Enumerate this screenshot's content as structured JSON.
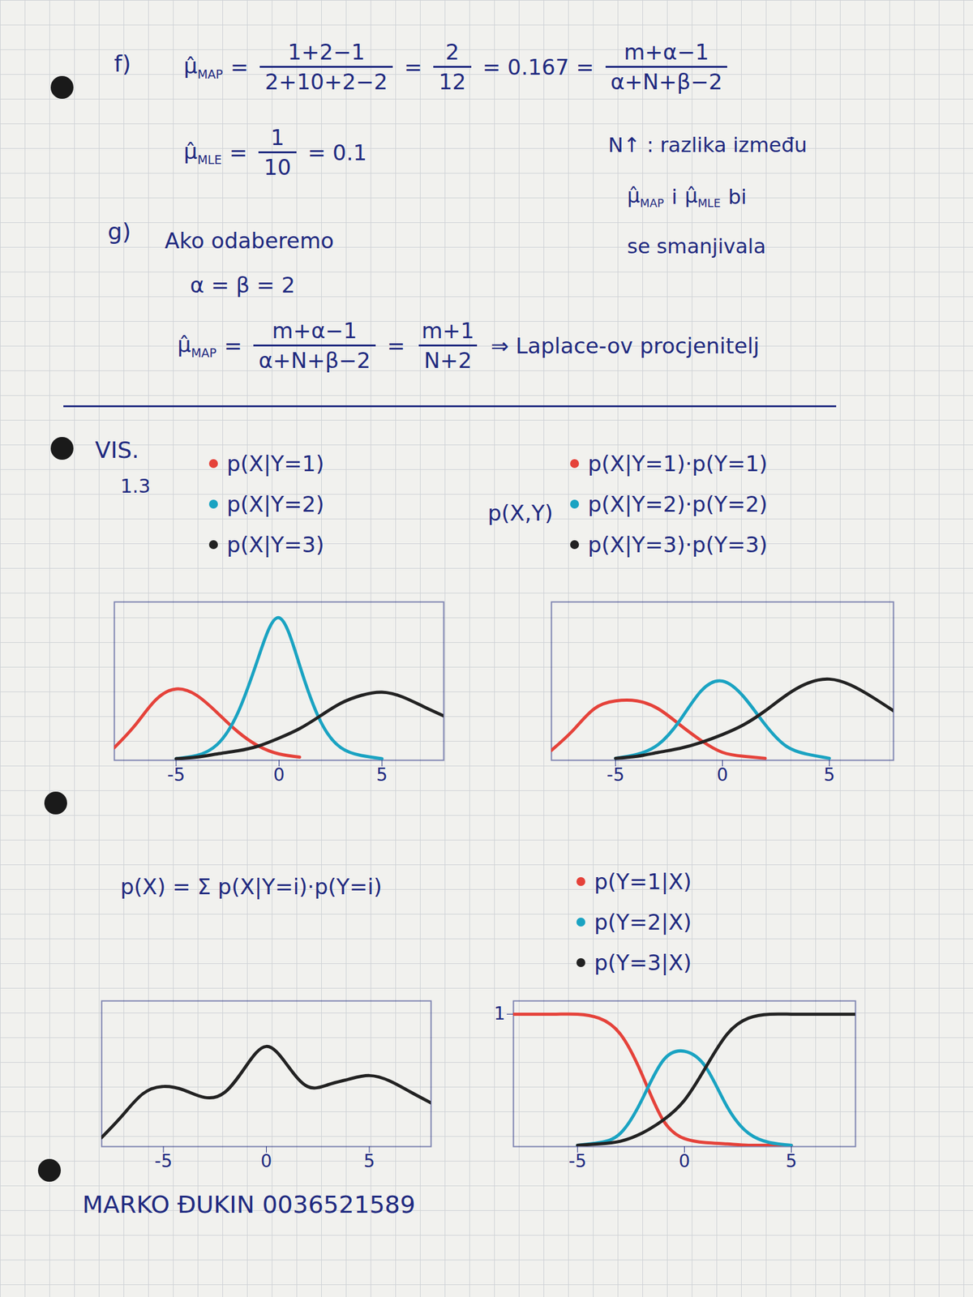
{
  "notes": {
    "f": {
      "label": "f)",
      "map": [
        {
          "sym": "μ̂",
          "sub": "MAP"
        },
        "=",
        {
          "num": "1+2−1",
          "den": "2+10+2−2"
        },
        "=",
        {
          "num": "2",
          "den": "12"
        },
        "= 0.167 =",
        {
          "num": "m+α−1",
          "den": "α+N+β−2"
        }
      ],
      "mle": [
        {
          "sym": "μ̂",
          "sub": "MLE"
        },
        "=",
        {
          "num": "1",
          "den": "10"
        },
        "= 0.1"
      ],
      "remark": [
        [
          "N↑ : razlika između"
        ],
        [
          {
            "sym": "μ̂",
            "sub": "MAP"
          },
          "i",
          {
            "sym": "μ̂",
            "sub": "MLE"
          },
          "bi"
        ],
        [
          "se smanjivala"
        ]
      ]
    },
    "g": {
      "label": "g)",
      "lines": [
        [
          "Ako odaberemo"
        ],
        [
          "α = β = 2"
        ],
        [
          {
            "sym": "μ̂",
            "sub": "MAP"
          },
          "=",
          {
            "num": "m+α−1",
            "den": "α+N+β−2"
          },
          "=",
          {
            "num": "m+1",
            "den": "N+2"
          },
          "⇒ Laplace-ov procjenitelj"
        ]
      ]
    }
  },
  "vis": {
    "heading": "VIS.",
    "section": "1.3"
  },
  "chart_data": [
    {
      "type": "line",
      "x": [
        -8,
        -7,
        -6,
        -5,
        -4,
        -3,
        -2,
        -1,
        0,
        1,
        2,
        3,
        4,
        5,
        6,
        7,
        8
      ],
      "xlim": [
        -8,
        8
      ],
      "xticks": [
        -5,
        0,
        5
      ],
      "ylim": [
        0,
        1
      ],
      "tick_labels": "x",
      "series": [
        {
          "name": "p(X|Y=1)",
          "color": "#e5423a",
          "values": [
            0.08,
            0.22,
            0.38,
            0.45,
            0.41,
            0.3,
            0.18,
            0.09,
            0.04,
            0.02,
            null,
            null,
            null,
            null,
            null,
            null,
            null
          ]
        },
        {
          "name": "p(X|Y=2)",
          "color": "#1aa3c2",
          "values": [
            null,
            null,
            null,
            0.01,
            0.03,
            0.1,
            0.3,
            0.65,
            0.9,
            0.6,
            0.25,
            0.08,
            0.03,
            0.01,
            null,
            null,
            null
          ]
        },
        {
          "name": "p(X|Y=3)",
          "color": "#222222",
          "values": [
            null,
            null,
            null,
            0.01,
            0.02,
            0.04,
            0.06,
            0.09,
            0.14,
            0.2,
            0.28,
            0.36,
            0.41,
            0.43,
            0.4,
            0.34,
            0.28
          ]
        }
      ]
    },
    {
      "type": "line",
      "title": "p(X,Y)",
      "x": [
        -8,
        -7,
        -6,
        -5,
        -4,
        -3,
        -2,
        -1,
        0,
        1,
        2,
        3,
        4,
        5,
        6,
        7,
        8
      ],
      "xlim": [
        -8,
        8
      ],
      "xticks": [
        -5,
        0,
        5
      ],
      "ylim": [
        0,
        0.8
      ],
      "tick_labels": "x",
      "series": [
        {
          "name": "p(X|Y=1)·p(Y=1)",
          "color": "#e5423a",
          "values": [
            0.05,
            0.15,
            0.26,
            0.3,
            0.3,
            0.26,
            0.18,
            0.1,
            0.04,
            0.02,
            0.01,
            null,
            null,
            null,
            null,
            null,
            null
          ]
        },
        {
          "name": "p(X|Y=2)·p(Y=2)",
          "color": "#1aa3c2",
          "values": [
            null,
            null,
            null,
            0.01,
            0.03,
            0.08,
            0.2,
            0.35,
            0.4,
            0.32,
            0.18,
            0.07,
            0.03,
            0.01,
            null,
            null,
            null
          ]
        },
        {
          "name": "p(X|Y=3)·p(Y=3)",
          "color": "#222222",
          "values": [
            null,
            null,
            null,
            0.01,
            0.02,
            0.04,
            0.06,
            0.09,
            0.13,
            0.18,
            0.25,
            0.33,
            0.39,
            0.41,
            0.38,
            0.32,
            0.25
          ]
        }
      ]
    },
    {
      "type": "line",
      "title": "p(X) = Σ p(X|Y=i)·p(Y=i)",
      "x": [
        -8,
        -7,
        -6,
        -5,
        -4,
        -3,
        -2,
        -1,
        0,
        1,
        2,
        3,
        4,
        5,
        6,
        7,
        8
      ],
      "xlim": [
        -8,
        8
      ],
      "xticks": [
        -5,
        0,
        5
      ],
      "ylim": [
        0,
        0.8
      ],
      "tick_labels": "x",
      "series": [
        {
          "color": "#222222",
          "values": [
            0.05,
            0.17,
            0.29,
            0.33,
            0.31,
            0.27,
            0.3,
            0.44,
            0.55,
            0.45,
            0.33,
            0.34,
            0.37,
            0.39,
            0.36,
            0.3,
            0.24
          ]
        }
      ]
    },
    {
      "type": "line",
      "x": [
        -8,
        -7,
        -6,
        -5,
        -4,
        -3,
        -2,
        -1,
        0,
        1,
        2,
        3,
        4,
        5,
        6,
        7,
        8
      ],
      "xlim": [
        -8,
        8
      ],
      "xticks": [
        -5,
        0,
        5
      ],
      "ylim": [
        0,
        1.1
      ],
      "yticks": [
        1
      ],
      "tick_labels": true,
      "series": [
        {
          "name": "p(Y=1|X)",
          "color": "#e5423a",
          "values": [
            1,
            1,
            1,
            1,
            0.97,
            0.85,
            0.55,
            0.2,
            0.06,
            0.03,
            0.02,
            0.01,
            0.01,
            0.01,
            null,
            null,
            null
          ]
        },
        {
          "name": "p(Y=2|X)",
          "color": "#1aa3c2",
          "values": [
            null,
            null,
            null,
            0.01,
            0.03,
            0.1,
            0.35,
            0.65,
            0.72,
            0.6,
            0.3,
            0.1,
            0.03,
            0.01,
            null,
            null,
            null
          ]
        },
        {
          "name": "p(Y=3|X)",
          "color": "#222222",
          "values": [
            null,
            null,
            null,
            0.01,
            0.02,
            0.04,
            0.1,
            0.2,
            0.35,
            0.6,
            0.85,
            0.97,
            1,
            1,
            1,
            1,
            1
          ]
        }
      ]
    }
  ],
  "signature": "MARKO ĐUKIN 0036521589"
}
